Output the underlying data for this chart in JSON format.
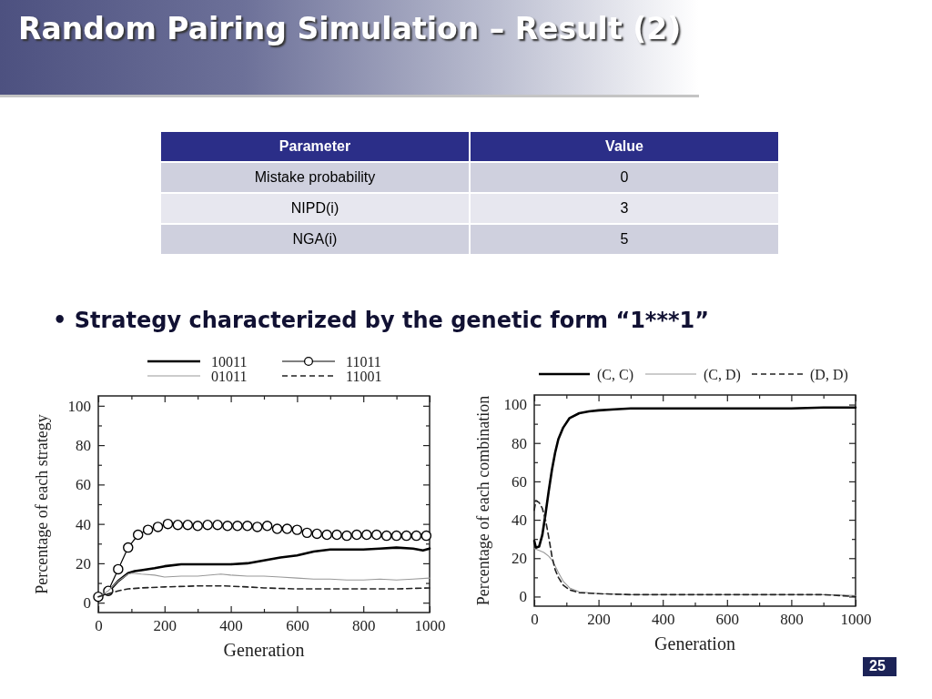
{
  "chart_data": [
    {
      "type": "other",
      "title": "Random Pairing Simulation – Result (2)",
      "subtitle": "• Strategy characterized by the genetic form “1***1”",
      "xlabel": "Parameter",
      "ylabel": "Value",
      "categories": [
        "Mistake probability",
        "NIPD(i)",
        "NGA(i)"
      ],
      "values": [
        0,
        3,
        5
      ],
      "data_labels": true,
      "annotations": [
        "25"
      ]
    },
    {
      "type": "line",
      "xlabel": "Generation",
      "ylabel": "Percentage of each strategy",
      "xlim": [
        0,
        1000
      ],
      "ylim": [
        -5,
        105
      ],
      "xticks": [
        0,
        {
          "value": 100,
          "label": null
        },
        200,
        {
          "value": 300,
          "label": null
        },
        400,
        {
          "value": 500,
          "label": null
        },
        600,
        {
          "value": 700,
          "label": null
        },
        800,
        {
          "value": 900,
          "label": null
        },
        1000
      ],
      "yticks": [
        0,
        {
          "value": 10,
          "label": null
        },
        20,
        {
          "value": 30,
          "label": null
        },
        40,
        {
          "value": 50,
          "label": null
        },
        60,
        {
          "value": 70,
          "label": null
        },
        80,
        {
          "value": 90,
          "label": null
        },
        100
      ],
      "legend": "top",
      "series": [
        {
          "name": "10011",
          "color": "#000000",
          "x": [
            0,
            30,
            60,
            90,
            110,
            130,
            170,
            200,
            250,
            300,
            350,
            400,
            450,
            500,
            550,
            600,
            650,
            700,
            750,
            800,
            850,
            900,
            950,
            980,
            1000
          ],
          "values": [
            3,
            5.5,
            11,
            15,
            16,
            16.5,
            17.5,
            18.5,
            19.5,
            19.5,
            19.5,
            19.5,
            20,
            21.5,
            23,
            24,
            26,
            27,
            27,
            27,
            27.5,
            28,
            27.5,
            26.5,
            27.5
          ]
        },
        {
          "name": "11011",
          "color": "#000000",
          "marker": "circle",
          "x": [
            0,
            30,
            60,
            90,
            120,
            150,
            180,
            210,
            240,
            270,
            300,
            330,
            360,
            390,
            420,
            450,
            480,
            510,
            540,
            570,
            600,
            630,
            660,
            690,
            720,
            750,
            780,
            810,
            840,
            870,
            900,
            930,
            960,
            990
          ],
          "values": [
            3,
            6,
            17,
            28,
            34.5,
            37,
            38.5,
            40,
            39.5,
            39.5,
            39,
            39.5,
            39.5,
            39,
            39,
            39,
            38.5,
            39,
            37.5,
            37.5,
            37,
            35.5,
            35,
            34.5,
            34.5,
            34,
            34.5,
            34.5,
            34.5,
            34,
            34,
            34,
            34,
            34
          ]
        },
        {
          "name": "01011",
          "color": "#999999",
          "x": [
            0,
            30,
            60,
            90,
            100,
            130,
            170,
            200,
            250,
            300,
            370,
            400,
            450,
            500,
            550,
            600,
            650,
            700,
            750,
            800,
            850,
            900,
            950,
            1000
          ],
          "values": [
            3,
            6,
            11,
            14.5,
            15,
            14.5,
            14,
            13,
            13.5,
            13.5,
            14.5,
            14,
            13.5,
            13.5,
            13,
            12.5,
            12,
            12,
            11.5,
            11.5,
            12,
            11.5,
            12,
            12.5
          ]
        },
        {
          "name": "11001",
          "color": "#222222",
          "line_style": "dashed",
          "x": [
            0,
            30,
            60,
            90,
            130,
            200,
            300,
            380,
            450,
            500,
            600,
            700,
            800,
            900,
            1000
          ],
          "values": [
            3,
            4.5,
            6,
            7,
            7.5,
            8,
            8.5,
            8.5,
            8,
            7.5,
            7,
            7,
            7,
            7,
            7.5
          ]
        }
      ]
    },
    {
      "type": "line",
      "xlabel": "Generation",
      "ylabel": "Percentage of each combination",
      "xlim": [
        0,
        1000
      ],
      "ylim": [
        -5,
        105
      ],
      "xticks": [
        0,
        {
          "value": 100,
          "label": null
        },
        200,
        {
          "value": 300,
          "label": null
        },
        400,
        {
          "value": 500,
          "label": null
        },
        600,
        {
          "value": 700,
          "label": null
        },
        800,
        {
          "value": 900,
          "label": null
        },
        1000
      ],
      "yticks": [
        0,
        {
          "value": 10,
          "label": null
        },
        20,
        {
          "value": 30,
          "label": null
        },
        40,
        {
          "value": 50,
          "label": null
        },
        60,
        {
          "value": 70,
          "label": null
        },
        80,
        {
          "value": 90,
          "label": null
        },
        100
      ],
      "legend": "top",
      "series": [
        {
          "name": "(C, C)",
          "color": "#000000",
          "x": [
            0,
            5,
            15,
            25,
            35,
            45,
            55,
            65,
            75,
            90,
            110,
            140,
            170,
            200,
            250,
            300,
            400,
            500,
            600,
            700,
            800,
            900,
            1000
          ],
          "values": [
            29,
            25.5,
            26,
            32,
            43,
            55,
            66,
            75,
            82,
            88,
            93,
            95.5,
            96.5,
            97,
            97.5,
            98,
            98,
            98,
            98,
            98,
            98,
            98.5,
            98.5
          ]
        },
        {
          "name": "(C, D)",
          "color": "#999999",
          "x": [
            0,
            15,
            30,
            45,
            55,
            65,
            75,
            90,
            110,
            140,
            200,
            300,
            500,
            700,
            900,
            1000
          ],
          "values": [
            25,
            24,
            23,
            21,
            19,
            16,
            12.5,
            8,
            4.5,
            2.5,
            1.5,
            1,
            1,
            1,
            1,
            0.5
          ]
        },
        {
          "name": "(D, D)",
          "color": "#222222",
          "line_style": "dashed",
          "x": [
            0,
            5,
            15,
            25,
            35,
            45,
            55,
            65,
            75,
            90,
            110,
            140,
            200,
            300,
            500,
            700,
            900,
            1000
          ],
          "values": [
            45,
            50,
            49,
            46,
            40,
            31,
            21,
            14,
            10,
            6,
            3.5,
            2,
            1.5,
            1,
            1,
            1,
            1,
            0
          ]
        }
      ]
    }
  ]
}
